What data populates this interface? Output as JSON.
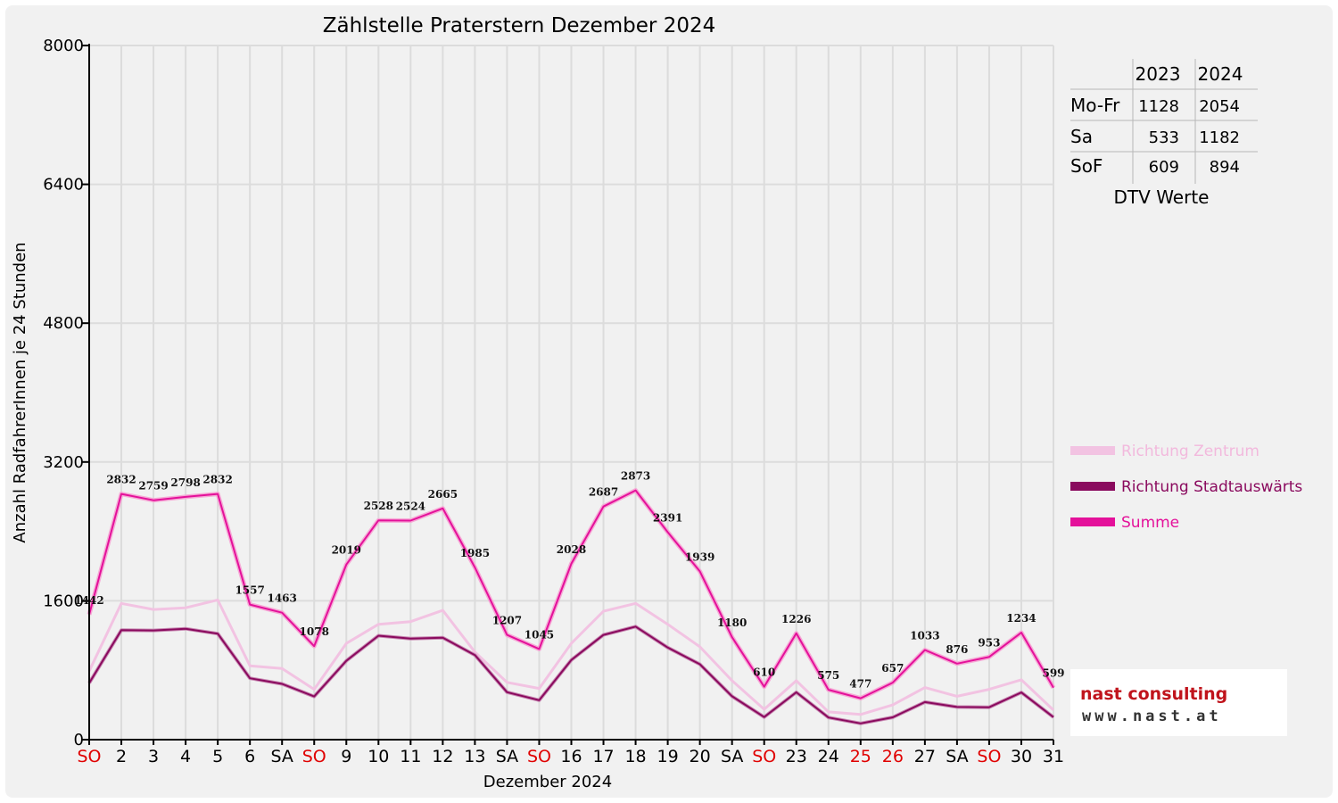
{
  "chart_data": {
    "type": "line",
    "title": "Zählstelle Praterstern Dezember 2024",
    "xlabel": "Dezember 2024",
    "ylabel": "Anzahl RadfahrerInnen je 24 Stunden",
    "ylim": [
      0,
      8000
    ],
    "yticks": [
      "0",
      "1600",
      "3200",
      "4800",
      "6400",
      "8000"
    ],
    "categories": [
      "SO",
      "2",
      "3",
      "4",
      "5",
      "6",
      "SA",
      "SO",
      "9",
      "10",
      "11",
      "12",
      "13",
      "SA",
      "SO",
      "16",
      "17",
      "18",
      "19",
      "20",
      "SA",
      "SO",
      "23",
      "24",
      "25",
      "26",
      "27",
      "SA",
      "SO",
      "30",
      "31"
    ],
    "red_categories": [
      0,
      7,
      14,
      21,
      24,
      25,
      28
    ],
    "grid": true,
    "legend_position": "right",
    "series": [
      {
        "name": "Richtung Zentrum",
        "color": "#f2c3e2",
        "values": [
          790,
          1570,
          1500,
          1520,
          1610,
          850,
          820,
          580,
          1110,
          1330,
          1360,
          1490,
          1010,
          660,
          590,
          1110,
          1480,
          1570,
          1330,
          1070,
          680,
          350,
          680,
          320,
          290,
          400,
          600,
          500,
          580,
          690,
          340
        ]
      },
      {
        "name": "Richtung Stadtauswärts",
        "color": "#8a0a5e",
        "values": [
          652,
          1262,
          1259,
          1278,
          1222,
          707,
          643,
          498,
          909,
          1198,
          1164,
          1175,
          975,
          547,
          455,
          918,
          1207,
          1303,
          1061,
          869,
          500,
          260,
          546,
          255,
          187,
          257,
          433,
          376,
          373,
          544,
          259
        ]
      },
      {
        "name": "Summe",
        "color": "#e4119a",
        "values": [
          1442,
          2832,
          2759,
          2798,
          2832,
          1557,
          1463,
          1078,
          2019,
          2528,
          2524,
          2665,
          1985,
          1207,
          1045,
          2028,
          2687,
          2873,
          2391,
          1939,
          1180,
          610,
          1226,
          575,
          477,
          657,
          1033,
          876,
          953,
          1234,
          599
        ]
      }
    ],
    "data_labels": [
      "1442",
      "2832",
      "2759",
      "2798",
      "2832",
      "1557",
      "1463",
      "1078",
      "2019",
      "2528",
      "2524",
      "2665",
      "1985",
      "1207",
      "1045",
      "2028",
      "2687",
      "2873",
      "2391",
      "1939",
      "1180",
      "610",
      "1226",
      "575",
      "477",
      "657",
      "1033",
      "876",
      "953",
      "1234",
      "599"
    ]
  },
  "dtv_table": {
    "headers": [
      "2023",
      "2024"
    ],
    "rows": [
      {
        "label": "Mo-Fr",
        "v2023": "1128",
        "v2024": "2054"
      },
      {
        "label": "Sa",
        "v2023": "533",
        "v2024": "1182"
      },
      {
        "label": "SoF",
        "v2023": "609",
        "v2024": "894"
      }
    ],
    "caption": "DTV Werte"
  },
  "logo": {
    "line1": "nast consulting",
    "line2": "www.nast.at",
    "color_red": "#c0141c",
    "color_grey": "#555555"
  }
}
